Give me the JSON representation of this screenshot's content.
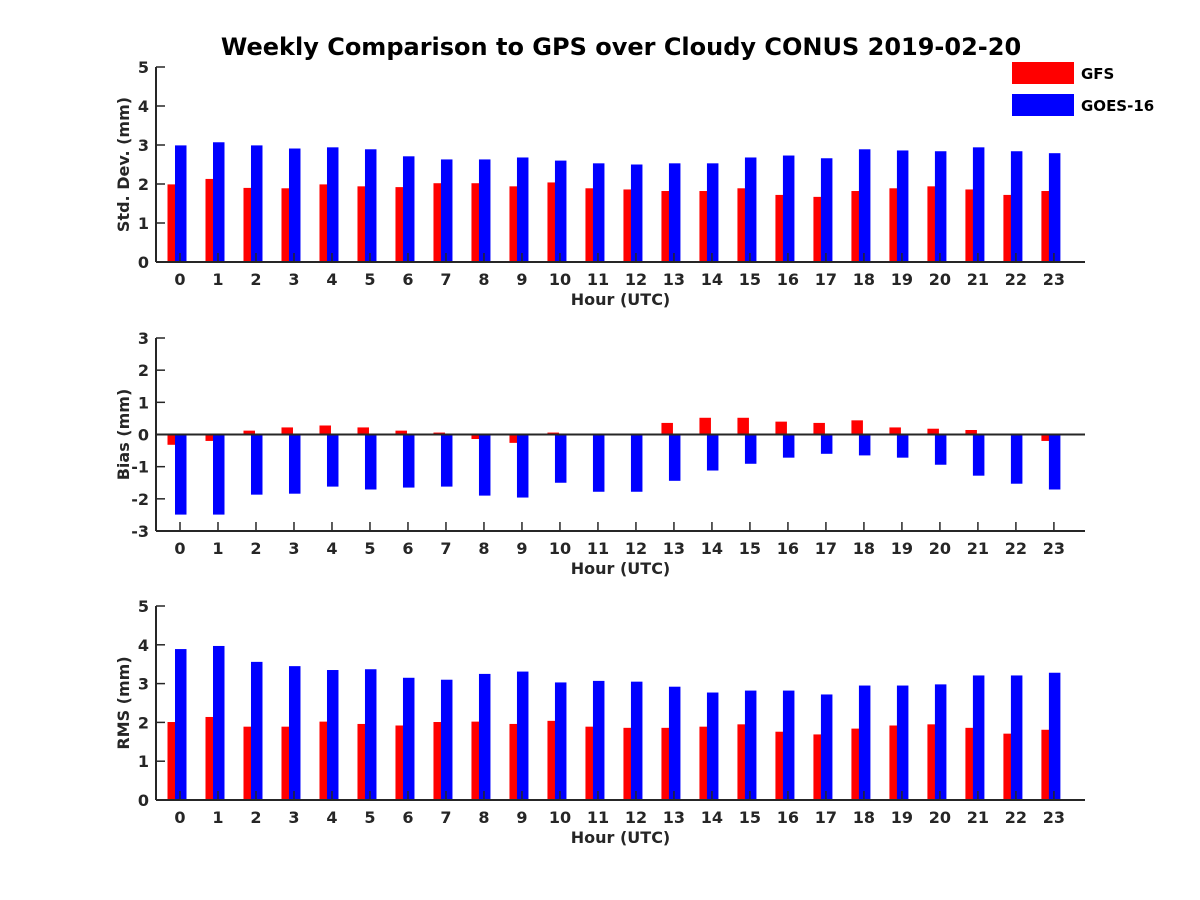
{
  "title": "Weekly Comparison to GPS over Cloudy CONUS 2019-02-20",
  "colors": {
    "gfs": "#ff0000",
    "goes": "#0000ff",
    "axis": "#262626"
  },
  "legend": {
    "placement": "top-right",
    "entries": [
      "GFS",
      "GOES-16"
    ]
  },
  "chart_data": [
    {
      "type": "bar",
      "xlabel": "Hour (UTC)",
      "ylabel": "Std. Dev. (mm)",
      "ylim": [
        0,
        5
      ],
      "yticks": [
        0,
        1,
        2,
        3,
        4,
        5
      ],
      "categories": [
        "0",
        "1",
        "2",
        "3",
        "4",
        "5",
        "6",
        "7",
        "8",
        "9",
        "10",
        "11",
        "12",
        "13",
        "14",
        "15",
        "16",
        "17",
        "18",
        "19",
        "20",
        "21",
        "22",
        "23"
      ],
      "series": [
        {
          "name": "GFS",
          "values": [
            1.99,
            2.13,
            1.9,
            1.89,
            1.99,
            1.94,
            1.92,
            2.02,
            2.02,
            1.94,
            2.04,
            1.89,
            1.86,
            1.82,
            1.82,
            1.89,
            1.72,
            1.67,
            1.82,
            1.89,
            1.94,
            1.86,
            1.72,
            1.82
          ]
        },
        {
          "name": "GOES-16",
          "values": [
            2.99,
            3.07,
            2.99,
            2.91,
            2.94,
            2.89,
            2.71,
            2.63,
            2.63,
            2.68,
            2.6,
            2.53,
            2.5,
            2.53,
            2.53,
            2.68,
            2.73,
            2.66,
            2.89,
            2.86,
            2.84,
            2.94,
            2.84,
            2.79
          ]
        }
      ]
    },
    {
      "type": "bar",
      "xlabel": "Hour (UTC)",
      "ylabel": "Bias (mm)",
      "ylim": [
        -3,
        3
      ],
      "yticks": [
        -3,
        -2,
        -1,
        0,
        1,
        2,
        3
      ],
      "categories": [
        "0",
        "1",
        "2",
        "3",
        "4",
        "5",
        "6",
        "7",
        "8",
        "9",
        "10",
        "11",
        "12",
        "13",
        "14",
        "15",
        "16",
        "17",
        "18",
        "19",
        "20",
        "21",
        "22",
        "23"
      ],
      "series": [
        {
          "name": "GFS",
          "values": [
            -0.32,
            -0.2,
            0.12,
            0.22,
            0.28,
            0.22,
            0.12,
            0.06,
            -0.14,
            -0.26,
            0.06,
            -0.03,
            -0.02,
            0.36,
            0.52,
            0.52,
            0.4,
            0.36,
            0.44,
            0.22,
            0.18,
            0.14,
            0.0,
            -0.2
          ]
        },
        {
          "name": "GOES-16",
          "values": [
            -2.49,
            -2.49,
            -1.87,
            -1.84,
            -1.62,
            -1.71,
            -1.65,
            -1.62,
            -1.9,
            -1.96,
            -1.5,
            -1.78,
            -1.78,
            -1.44,
            -1.12,
            -0.91,
            -0.72,
            -0.6,
            -0.65,
            -0.72,
            -0.94,
            -1.28,
            -1.53,
            -1.71
          ]
        }
      ]
    },
    {
      "type": "bar",
      "xlabel": "Hour (UTC)",
      "ylabel": "RMS (mm)",
      "ylim": [
        0,
        5
      ],
      "yticks": [
        0,
        1,
        2,
        3,
        4,
        5
      ],
      "categories": [
        "0",
        "1",
        "2",
        "3",
        "4",
        "5",
        "6",
        "7",
        "8",
        "9",
        "10",
        "11",
        "12",
        "13",
        "14",
        "15",
        "16",
        "17",
        "18",
        "19",
        "20",
        "21",
        "22",
        "23"
      ],
      "series": [
        {
          "name": "GFS",
          "values": [
            2.01,
            2.14,
            1.89,
            1.89,
            2.02,
            1.96,
            1.92,
            2.01,
            2.02,
            1.96,
            2.04,
            1.89,
            1.86,
            1.86,
            1.89,
            1.95,
            1.76,
            1.69,
            1.84,
            1.92,
            1.95,
            1.86,
            1.71,
            1.81
          ]
        },
        {
          "name": "GOES-16",
          "values": [
            3.89,
            3.97,
            3.56,
            3.45,
            3.35,
            3.37,
            3.15,
            3.1,
            3.25,
            3.31,
            3.03,
            3.07,
            3.05,
            2.92,
            2.77,
            2.82,
            2.82,
            2.72,
            2.95,
            2.95,
            2.98,
            3.21,
            3.21,
            3.28
          ]
        }
      ]
    }
  ]
}
